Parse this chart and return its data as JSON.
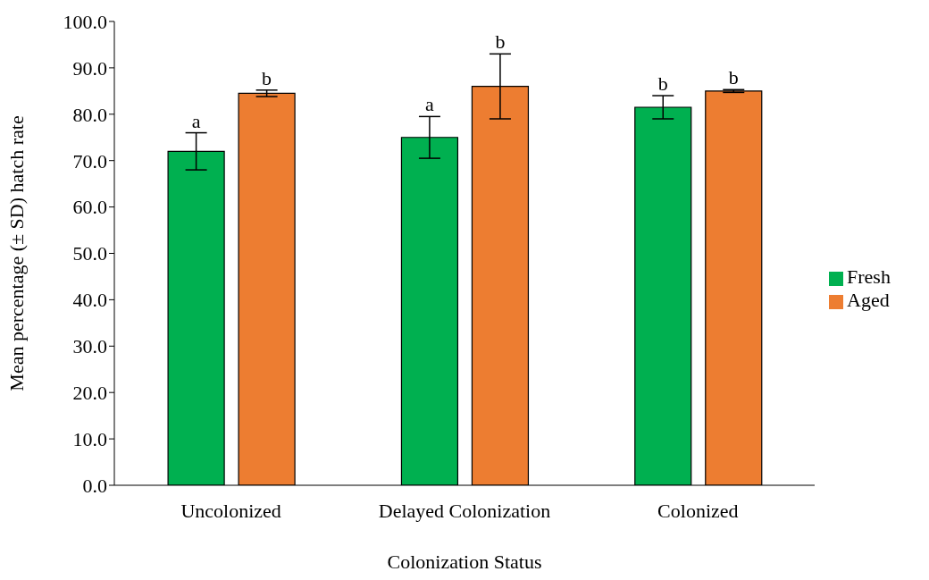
{
  "chart_data": {
    "type": "bar",
    "xlabel": "Colonization Status",
    "ylabel": "Mean percentage (± SD) hatch rate",
    "categories": [
      "Uncolonized",
      "Delayed Colonization",
      "Colonized"
    ],
    "series": [
      {
        "name": "Fresh",
        "color": "#00b050",
        "values": [
          72.0,
          75.0,
          81.5
        ],
        "errors": [
          4.0,
          4.5,
          2.5
        ]
      },
      {
        "name": "Aged",
        "color": "#ed7d31",
        "values": [
          84.5,
          86.0,
          85.0
        ],
        "errors": [
          0.7,
          7.0,
          0.3
        ]
      }
    ],
    "ylim": [
      0,
      100
    ],
    "yticks": [
      {
        "value": 0,
        "label": "0.0"
      },
      {
        "value": 10,
        "label": "10.0"
      },
      {
        "value": 20,
        "label": "20.0"
      },
      {
        "value": 30,
        "label": "30.0"
      },
      {
        "value": 40,
        "label": "40.0"
      },
      {
        "value": 50,
        "label": "50.0"
      },
      {
        "value": 60,
        "label": "60.0"
      },
      {
        "value": 70,
        "label": "70.0"
      },
      {
        "value": 80,
        "label": "80.0"
      },
      {
        "value": 90,
        "label": "90.0"
      },
      {
        "value": 100,
        "label": "100.0"
      }
    ],
    "annotations": [
      "a",
      "b",
      "a",
      "b",
      "b",
      "b"
    ],
    "grid": false,
    "legend": "right"
  }
}
